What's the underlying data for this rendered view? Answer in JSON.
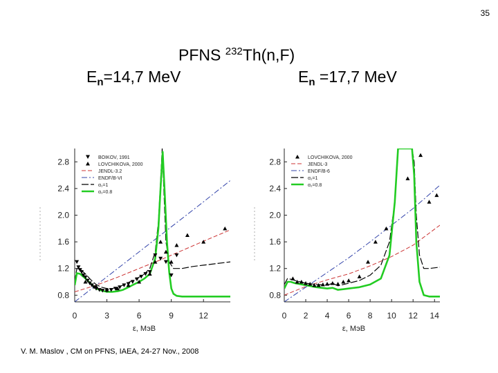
{
  "slide": {
    "page_number": "35",
    "title_prefix": "PFNS ",
    "title_isotope_mass": "232",
    "title_reaction": "Th(n,F)",
    "subtitle_left_main": "E",
    "subtitle_left_sub": "n",
    "subtitle_left_value": "=14,7 MeV",
    "subtitle_right_main": "E",
    "subtitle_right_sub": "n",
    "subtitle_right_value": " =17,7 MeV",
    "footer": "V. M. Maslov ,   CM on PFNS, IAEA, 24-27 Nov., 2008"
  },
  "chart_data": [
    {
      "type": "line",
      "xlabel": "ε, МэВ",
      "ylabel": "",
      "xlim": [
        0,
        14.5
      ],
      "ylim": [
        0.7,
        3.0
      ],
      "xticks": [
        0,
        3,
        6,
        9,
        12
      ],
      "yticks": [
        0.8,
        1.2,
        1.6,
        2.0,
        2.4,
        2.8
      ],
      "xtick_labels": [
        "0",
        "3",
        "6",
        "9",
        "12"
      ],
      "ytick_labels": [
        "0.8",
        "1.2",
        "1.6",
        "2.0",
        "2.4",
        "2.8"
      ],
      "legend_position": "top-left",
      "legend": [
        {
          "label": "BOIKOV, 1991",
          "style": "marker-down",
          "color": "#000000"
        },
        {
          "label": "LOVCHIKOVA, 2000",
          "style": "marker-up",
          "color": "#000000"
        },
        {
          "label": "JENDL-3.2",
          "style": "dash",
          "color": "#cc3333"
        },
        {
          "label": "ENDF/B-VI",
          "style": "dashdot",
          "color": "#3344aa"
        },
        {
          "label": "α₁=1",
          "style": "longdash",
          "color": "#000000"
        },
        {
          "label": "α₁=0.8",
          "style": "thick",
          "color": "#22cc22"
        }
      ],
      "series": [
        {
          "name": "JENDL-3.2",
          "style": "dash",
          "color": "#cc3333",
          "x": [
            0,
            2,
            4,
            6,
            8,
            10,
            12,
            14.5
          ],
          "y": [
            0.85,
            0.95,
            1.07,
            1.2,
            1.33,
            1.47,
            1.61,
            1.78
          ]
        },
        {
          "name": "ENDF/B-VI",
          "style": "dashdot",
          "color": "#3344aa",
          "x": [
            0,
            2,
            4,
            6,
            8,
            10,
            12,
            14.5
          ],
          "y": [
            0.7,
            0.95,
            1.2,
            1.45,
            1.7,
            1.95,
            2.2,
            2.52
          ]
        },
        {
          "name": "α₁=1",
          "style": "longdash",
          "color": "#000000",
          "x": [
            0.0,
            0.2,
            0.5,
            1.0,
            1.5,
            2.0,
            2.5,
            3.0,
            3.5,
            4.0,
            4.5,
            5.0,
            5.5,
            6.0,
            6.5,
            7.0,
            7.5,
            7.8,
            8.0,
            8.15,
            8.3,
            8.5,
            8.8,
            9.2,
            10.0,
            11.0,
            12.0,
            13.0,
            14.5
          ],
          "y": [
            1.0,
            1.2,
            1.19,
            1.12,
            1.03,
            0.96,
            0.92,
            0.9,
            0.9,
            0.92,
            0.95,
            0.99,
            1.03,
            1.07,
            1.12,
            1.2,
            1.45,
            1.9,
            2.5,
            3.0,
            2.4,
            1.6,
            1.3,
            1.2,
            1.2,
            1.23,
            1.25,
            1.27,
            1.3
          ]
        },
        {
          "name": "α₁=0.8",
          "style": "thick",
          "color": "#22cc22",
          "x": [
            0.0,
            0.2,
            0.5,
            1.0,
            1.5,
            2.0,
            2.5,
            3.0,
            3.5,
            4.0,
            4.5,
            5.0,
            5.5,
            6.0,
            6.5,
            7.0,
            7.5,
            7.8,
            8.0,
            8.2,
            8.4,
            8.6,
            8.8,
            9.0,
            9.2,
            9.5,
            10.0,
            11.0,
            12.0,
            13.0,
            14.5
          ],
          "y": [
            0.95,
            1.13,
            1.12,
            1.05,
            0.97,
            0.9,
            0.87,
            0.85,
            0.85,
            0.86,
            0.88,
            0.92,
            0.96,
            1.0,
            1.05,
            1.12,
            1.35,
            1.8,
            2.4,
            2.95,
            2.3,
            1.6,
            1.15,
            0.9,
            0.82,
            0.79,
            0.78,
            0.78,
            0.78,
            0.78,
            0.78
          ]
        },
        {
          "name": "BOIKOV, 1991",
          "style": "marker-down",
          "color": "#000000",
          "x": [
            0.2,
            0.35,
            0.5,
            0.65,
            0.8,
            1.0,
            1.2,
            1.4,
            1.6,
            1.8,
            2.0,
            2.3,
            2.6,
            3.0,
            3.4,
            3.8,
            4.2,
            4.6,
            5.0,
            5.4,
            5.8,
            6.2,
            6.6,
            7.0,
            7.5,
            8.0,
            8.5,
            9.0,
            9.5
          ],
          "y": [
            1.3,
            1.22,
            1.18,
            1.15,
            1.1,
            1.07,
            1.02,
            0.98,
            0.95,
            0.92,
            0.9,
            0.88,
            0.87,
            0.87,
            0.88,
            0.9,
            0.92,
            0.95,
            0.97,
            1.0,
            1.04,
            1.08,
            1.12,
            1.15,
            1.4,
            1.35,
            1.3,
            1.1,
            1.4
          ]
        },
        {
          "name": "LOVCHIKOVA, 2000",
          "style": "marker-up",
          "color": "#000000",
          "x": [
            1.0,
            2.0,
            3.0,
            4.0,
            5.0,
            6.0,
            7.0,
            7.5,
            8.0,
            8.5,
            9.0,
            9.5,
            10.5,
            12.0,
            14.0
          ],
          "y": [
            1.0,
            0.93,
            0.88,
            0.9,
            0.95,
            1.0,
            1.12,
            1.3,
            1.6,
            1.45,
            1.3,
            1.55,
            1.7,
            1.6,
            1.8
          ]
        }
      ]
    },
    {
      "type": "line",
      "xlabel": "ε, МэВ",
      "ylabel": "",
      "xlim": [
        0,
        14.5
      ],
      "ylim": [
        0.7,
        3.0
      ],
      "xticks": [
        0,
        2,
        4,
        6,
        8,
        10,
        12,
        14
      ],
      "yticks": [
        0.8,
        1.2,
        1.6,
        2.0,
        2.4,
        2.8
      ],
      "xtick_labels": [
        "0",
        "2",
        "4",
        "6",
        "8",
        "10",
        "12",
        "14"
      ],
      "ytick_labels": [
        "0.8",
        "1.2",
        "1.6",
        "2.0",
        "2.4",
        "2.8"
      ],
      "legend_position": "top-left",
      "legend": [
        {
          "label": "LOVCHIKOVA, 2000",
          "style": "marker-up",
          "color": "#000000"
        },
        {
          "label": "JENDL-3",
          "style": "dash",
          "color": "#cc3333"
        },
        {
          "label": "ENDF/B-6",
          "style": "dashdot",
          "color": "#3344aa"
        },
        {
          "label": "α₁=1",
          "style": "longdash",
          "color": "#000000"
        },
        {
          "label": "α₁=0.8",
          "style": "thick",
          "color": "#22cc22"
        }
      ],
      "series": [
        {
          "name": "JENDL-3",
          "style": "dash",
          "color": "#cc3333",
          "x": [
            0,
            2,
            4,
            6,
            8,
            10,
            12,
            14.5
          ],
          "y": [
            0.8,
            0.93,
            1.03,
            1.12,
            1.24,
            1.38,
            1.55,
            1.85
          ]
        },
        {
          "name": "ENDF/B-6",
          "style": "dashdot",
          "color": "#3344aa",
          "x": [
            0,
            2,
            4,
            6,
            8,
            10,
            12,
            14.5
          ],
          "y": [
            0.7,
            0.92,
            1.14,
            1.36,
            1.6,
            1.85,
            2.1,
            2.45
          ]
        },
        {
          "name": "α₁=1",
          "style": "longdash",
          "color": "#000000",
          "x": [
            0.0,
            0.3,
            0.6,
            1.0,
            2.0,
            3.0,
            4.0,
            4.5,
            5.0,
            5.5,
            6.0,
            7.0,
            8.0,
            9.0,
            9.8,
            10.3,
            10.6,
            11.0,
            11.5,
            11.9,
            12.1,
            12.3,
            12.6,
            13.0,
            13.5,
            14.5
          ],
          "y": [
            0.96,
            1.05,
            1.04,
            1.02,
            0.98,
            0.96,
            0.95,
            0.98,
            0.94,
            0.96,
            0.98,
            1.02,
            1.1,
            1.25,
            1.6,
            2.2,
            3.0,
            3.0,
            3.0,
            3.0,
            2.8,
            2.0,
            1.4,
            1.2,
            1.2,
            1.22
          ]
        },
        {
          "name": "α₁=0.8",
          "style": "thick",
          "color": "#22cc22",
          "x": [
            0.0,
            0.3,
            0.6,
            1.0,
            2.0,
            3.0,
            4.0,
            4.5,
            5.0,
            5.5,
            6.0,
            7.0,
            8.0,
            9.0,
            9.8,
            10.3,
            10.6,
            11.0,
            11.5,
            11.9,
            12.1,
            12.3,
            12.6,
            13.0,
            13.5,
            14.5
          ],
          "y": [
            0.9,
            1.0,
            1.0,
            0.98,
            0.95,
            0.92,
            0.9,
            0.91,
            0.88,
            0.89,
            0.9,
            0.92,
            0.96,
            1.05,
            1.4,
            2.2,
            3.0,
            3.0,
            3.0,
            3.0,
            2.6,
            1.6,
            1.0,
            0.8,
            0.78,
            0.78
          ]
        },
        {
          "name": "LOVCHIKOVA, 2000",
          "style": "marker-up",
          "color": "#000000",
          "x": [
            0.8,
            1.2,
            1.6,
            2.0,
            2.4,
            2.8,
            3.2,
            3.6,
            4.0,
            4.5,
            5.0,
            5.5,
            6.0,
            7.0,
            7.8,
            8.5,
            9.5,
            11.5,
            12.7,
            13.5,
            14.2
          ],
          "y": [
            1.05,
            1.0,
            1.0,
            0.98,
            0.97,
            0.95,
            0.95,
            0.96,
            0.97,
            0.98,
            0.97,
            1.0,
            1.02,
            1.08,
            1.3,
            1.6,
            1.8,
            2.55,
            2.9,
            2.2,
            2.3
          ]
        }
      ]
    }
  ]
}
